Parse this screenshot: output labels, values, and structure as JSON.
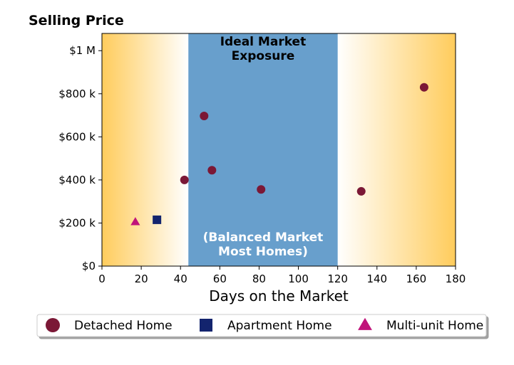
{
  "chart_data": {
    "type": "scatter",
    "title": "Selling Price",
    "xlabel": "Days on the Market",
    "ylabel": "",
    "xlim": [
      0,
      180
    ],
    "ylim": [
      0,
      1080000
    ],
    "x_ticks": [
      0,
      20,
      40,
      60,
      80,
      100,
      120,
      140,
      160,
      180
    ],
    "x_tick_labels": [
      "0",
      "20",
      "40",
      "60",
      "80",
      "100",
      "120",
      "140",
      "160",
      "180"
    ],
    "y_ticks": [
      0,
      200000,
      400000,
      600000,
      800000,
      1000000
    ],
    "y_tick_labels": [
      "$0",
      "$200 k",
      "$400 k",
      "$600 k",
      "$800 k",
      "$1 M"
    ],
    "grid": false,
    "legend_position": "bottom",
    "band": {
      "x_start": 44,
      "x_end": 120,
      "color": "#689fcc",
      "top_label": [
        "Ideal Market",
        "Exposure"
      ],
      "bottom_label": [
        "(Balanced Market",
        "Most Homes)"
      ]
    },
    "side_gradient": {
      "outer_color": "#ffcc5c",
      "inner_color": "#ffffff"
    },
    "series": [
      {
        "name": "Detached Home",
        "marker": "circle",
        "color": "#7b1836",
        "points": [
          {
            "x": 42,
            "y": 400000
          },
          {
            "x": 52,
            "y": 697000
          },
          {
            "x": 56,
            "y": 445000
          },
          {
            "x": 81,
            "y": 356000
          },
          {
            "x": 132,
            "y": 347000
          },
          {
            "x": 164,
            "y": 830000
          }
        ]
      },
      {
        "name": "Apartment Home",
        "marker": "square",
        "color": "#13246e",
        "points": [
          {
            "x": 28,
            "y": 215000
          }
        ]
      },
      {
        "name": "Multi-unit Home",
        "marker": "triangle",
        "color": "#c0137a",
        "points": [
          {
            "x": 17,
            "y": 205000
          }
        ]
      }
    ]
  }
}
